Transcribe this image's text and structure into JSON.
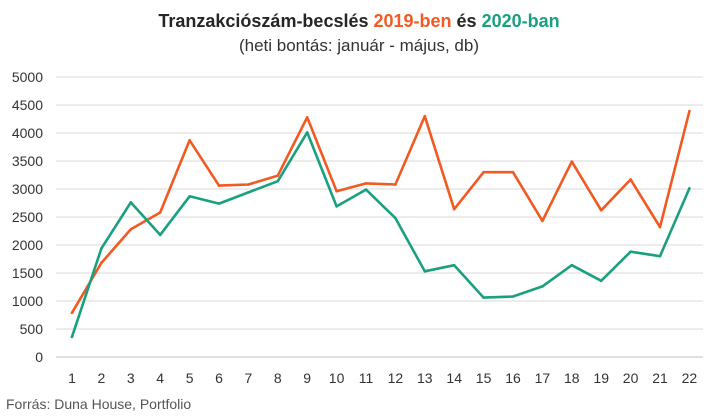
{
  "chart_data": {
    "type": "line",
    "title": {
      "prefix": "Tranzakciószám-becslés ",
      "series1_label": "2019-ben",
      "middle": " és ",
      "series2_label": "2020-ban"
    },
    "subtitle": "(heti bontás: január - május, db)",
    "x": [
      "1",
      "2",
      "3",
      "4",
      "5",
      "6",
      "7",
      "8",
      "9",
      "10",
      "11",
      "12",
      "13",
      "14",
      "15",
      "16",
      "17",
      "18",
      "19",
      "20",
      "21",
      "22"
    ],
    "y_ticks": [
      "0",
      "500",
      "1000",
      "1500",
      "2000",
      "2500",
      "3000",
      "3500",
      "4000",
      "4500",
      "5000"
    ],
    "ylim": [
      0,
      5000
    ],
    "grid": "horizontal",
    "series": [
      {
        "name": "2019-ben",
        "color": "#f15a22",
        "values": [
          790,
          1680,
          2280,
          2580,
          3870,
          3060,
          3080,
          3240,
          4280,
          2960,
          3100,
          3080,
          4300,
          2640,
          3300,
          3300,
          2430,
          3490,
          2620,
          3170,
          2320,
          4390
        ]
      },
      {
        "name": "2020-ban",
        "color": "#1aa080",
        "values": [
          360,
          1940,
          2760,
          2180,
          2870,
          2740,
          2940,
          3140,
          4010,
          2690,
          2990,
          2480,
          1530,
          1640,
          1060,
          1080,
          1260,
          1640,
          1360,
          1880,
          1800,
          3010
        ]
      }
    ]
  },
  "source": "Forrás: Duna House, Portfolio"
}
